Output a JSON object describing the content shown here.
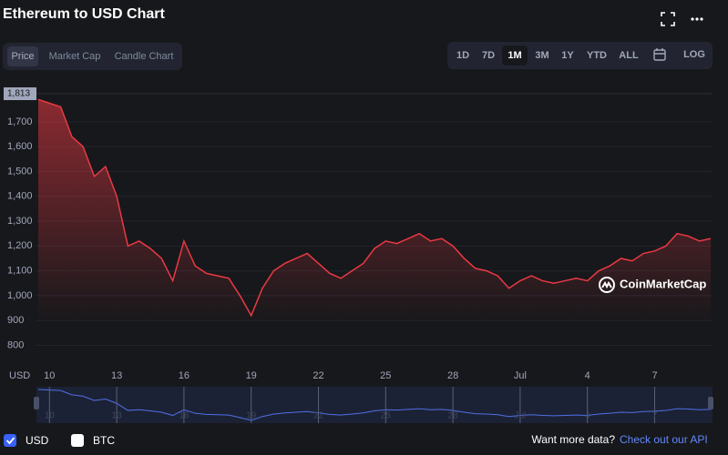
{
  "header": {
    "title": "Ethereum to USD Chart"
  },
  "tabs": {
    "items": [
      "Price",
      "Market Cap",
      "Candle Chart"
    ],
    "selected": 0
  },
  "range_buttons": {
    "items": [
      "1D",
      "7D",
      "1M",
      "3M",
      "1Y",
      "YTD",
      "ALL"
    ],
    "selected": 2,
    "log": "LOG"
  },
  "chart_data": {
    "type": "line",
    "x": [
      null,
      "10",
      null,
      null,
      null,
      null,
      null,
      "13",
      null,
      null,
      null,
      null,
      null,
      "16",
      null,
      null,
      null,
      null,
      null,
      "19",
      null,
      null,
      null,
      null,
      null,
      "22",
      null,
      null,
      null,
      null,
      null,
      "25",
      null,
      null,
      null,
      null,
      null,
      "28",
      null,
      null,
      null,
      null,
      null,
      "Jul",
      null,
      null,
      null,
      null,
      null,
      "4",
      null,
      null,
      null,
      null,
      null,
      "7",
      null,
      null,
      null,
      null,
      null
    ],
    "series": [
      {
        "name": "USD",
        "color": "#ea3943",
        "values": [
          1790,
          1775,
          1760,
          1640,
          1600,
          1480,
          1520,
          1400,
          1200,
          1220,
          1190,
          1150,
          1060,
          1220,
          1120,
          1090,
          1080,
          1070,
          1000,
          920,
          1030,
          1100,
          1130,
          1150,
          1170,
          1130,
          1090,
          1070,
          1100,
          1130,
          1190,
          1220,
          1210,
          1230,
          1250,
          1220,
          1230,
          1200,
          1150,
          1110,
          1100,
          1080,
          1030,
          1060,
          1080,
          1060,
          1050,
          1060,
          1070,
          1060,
          1100,
          1120,
          1150,
          1140,
          1170,
          1180,
          1200,
          1250,
          1240,
          1220,
          1230
        ]
      }
    ],
    "ylim": [
      725,
      1813
    ],
    "yticks": [
      {
        "value": 800,
        "label": "800"
      },
      {
        "value": 900,
        "label": "900"
      },
      {
        "value": 1000,
        "label": "1,000"
      },
      {
        "value": 1100,
        "label": "1,100"
      },
      {
        "value": 1200,
        "label": "1,200"
      },
      {
        "value": 1300,
        "label": "1,300"
      },
      {
        "value": 1400,
        "label": "1,400"
      },
      {
        "value": 1500,
        "label": "1,500"
      },
      {
        "value": 1600,
        "label": "1,600"
      },
      {
        "value": 1700,
        "label": "1,700"
      }
    ],
    "high_label": {
      "value": 1813,
      "label": "1,813"
    },
    "y_axis_label": "USD",
    "grid": true,
    "area": true,
    "watermark": "CoinMarketCap",
    "compare_option": "BTC"
  },
  "footer": {
    "prompt": "Want more data?",
    "link": "Check out our API"
  }
}
